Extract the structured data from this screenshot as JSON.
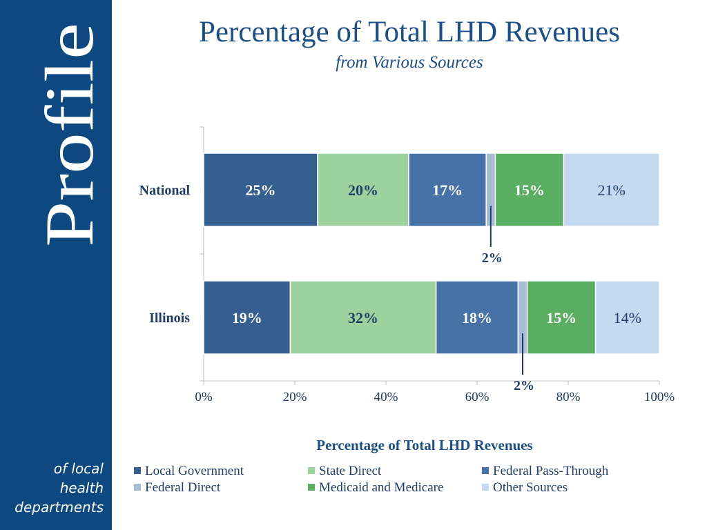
{
  "sidebar": {
    "brand": "Profile",
    "tagline": [
      "of local",
      "health",
      "departments"
    ]
  },
  "header": {
    "title": "Percentage of Total LHD Revenues",
    "subtitle": "from Various Sources"
  },
  "colors": {
    "sidebar": "#0e4880",
    "title": "#1b4f88",
    "local_government": "#365f91",
    "state_direct": "#9dd19e",
    "federal_pass_through": "#4672a8",
    "federal_direct": "#a8bcd6",
    "medicaid_medicare": "#5aae61",
    "other_sources": "#c5d9f1"
  },
  "chart_data": {
    "type": "bar",
    "orientation": "horizontal",
    "stacked": true,
    "categories": [
      "National",
      "Illinois"
    ],
    "series": [
      {
        "name": "Local Government",
        "values": [
          25,
          19
        ],
        "labels": [
          "25%",
          "19%"
        ],
        "color": "#365f91"
      },
      {
        "name": "State Direct",
        "values": [
          20,
          32
        ],
        "labels": [
          "20%",
          "32%"
        ],
        "color": "#9dd19e"
      },
      {
        "name": "Federal Pass-Through",
        "values": [
          17,
          18
        ],
        "labels": [
          "17%",
          "18%"
        ],
        "color": "#4672a8"
      },
      {
        "name": "Federal Direct",
        "values": [
          2,
          2
        ],
        "labels": [
          "2%",
          "2%"
        ],
        "color": "#a8bcd6"
      },
      {
        "name": "Medicaid and Medicare",
        "values": [
          15,
          15
        ],
        "labels": [
          "15%",
          "15%"
        ],
        "color": "#5aae61"
      },
      {
        "name": "Other Sources",
        "values": [
          21,
          14
        ],
        "labels": [
          "21%",
          "14%"
        ],
        "color": "#c5d9f1"
      }
    ],
    "xlabel": "Percentage of Total LHD Revenues",
    "xlim": [
      0,
      100
    ],
    "xticks": [
      "0%",
      "20%",
      "40%",
      "60%",
      "80%",
      "100%"
    ],
    "grid": false,
    "legend_position": "bottom"
  }
}
